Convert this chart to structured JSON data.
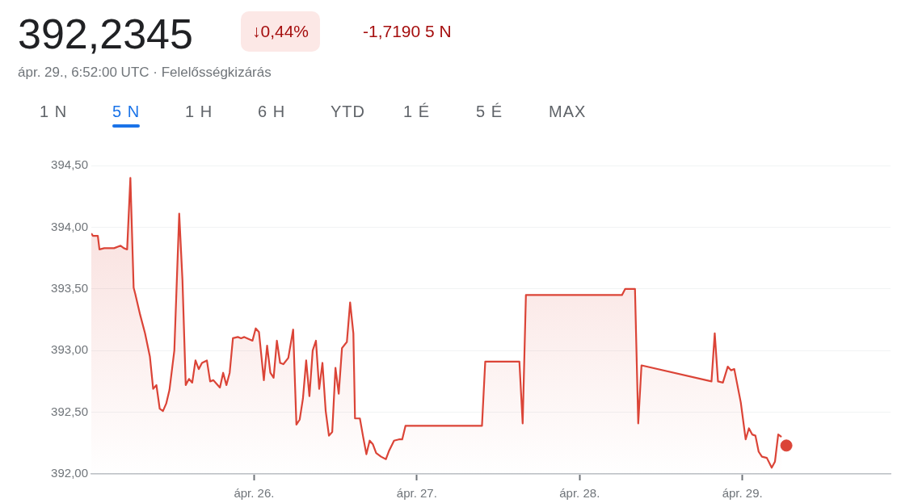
{
  "chart_data": {
    "type": "area",
    "title": "392,2345",
    "subtitle": "ápr. 29., 6:52:00 UTC · Felelősségkizárás",
    "annotations": [
      "↓0,44%",
      "-1,7190 5 N",
      "1 N",
      "5 N",
      "1 H",
      "6 H",
      "YTD",
      "1 É",
      "5 É",
      "MAX"
    ],
    "series": [
      {
        "color": "#db4437",
        "x": [
          25.0,
          25.01,
          25.04,
          25.05,
          25.08,
          25.14,
          25.18,
          25.2,
          25.22,
          25.24,
          25.26,
          25.27,
          25.3,
          25.33,
          25.36,
          25.38,
          25.4,
          25.42,
          25.44,
          25.46,
          25.48,
          25.51,
          25.54,
          25.56,
          25.58,
          25.6,
          25.62,
          25.64,
          25.66,
          25.68,
          25.71,
          25.73,
          25.75,
          25.77,
          25.79,
          25.81,
          25.83,
          25.85,
          25.87,
          25.9,
          25.92,
          25.94,
          25.99,
          26.01,
          26.03,
          26.06,
          26.08,
          26.1,
          26.12,
          26.14,
          26.16,
          26.18,
          26.21,
          26.24,
          26.26,
          26.28,
          26.3,
          26.32,
          26.34,
          26.36,
          26.38,
          26.4,
          26.42,
          26.44,
          26.46,
          26.48,
          26.5,
          26.52,
          26.54,
          26.57,
          26.59,
          26.61,
          26.62,
          26.65,
          26.67,
          26.69,
          26.71,
          26.73,
          26.75,
          26.78,
          26.81,
          26.83,
          26.86,
          26.89,
          26.91,
          26.93,
          27.4,
          27.42,
          27.63,
          27.65,
          27.67,
          28.26,
          28.28,
          28.34,
          28.36,
          28.38,
          28.81,
          28.83,
          28.85,
          28.88,
          28.91,
          28.93,
          28.95,
          28.99,
          29.02,
          29.04,
          29.06,
          29.08,
          29.1,
          29.12,
          29.15,
          29.18,
          29.2,
          29.22,
          29.24
        ],
        "values": [
          393.95,
          393.93,
          393.93,
          393.82,
          393.83,
          393.83,
          393.85,
          393.83,
          393.82,
          394.4,
          393.51,
          393.46,
          393.29,
          393.14,
          392.95,
          392.69,
          392.72,
          392.53,
          392.51,
          392.57,
          392.68,
          393.0,
          394.11,
          393.57,
          392.72,
          392.77,
          392.74,
          392.92,
          392.85,
          392.9,
          392.92,
          392.75,
          392.76,
          392.73,
          392.7,
          392.82,
          392.72,
          392.82,
          393.1,
          393.11,
          393.1,
          393.11,
          393.08,
          393.18,
          393.15,
          392.76,
          393.04,
          392.82,
          392.78,
          393.08,
          392.9,
          392.89,
          392.94,
          393.17,
          392.4,
          392.44,
          392.61,
          392.92,
          392.63,
          393.0,
          393.08,
          392.69,
          392.9,
          392.51,
          392.31,
          392.34,
          392.86,
          392.65,
          393.02,
          393.07,
          393.39,
          393.14,
          392.45,
          392.45,
          392.3,
          392.16,
          392.27,
          392.24,
          392.17,
          392.14,
          392.12,
          392.19,
          392.27,
          392.28,
          392.28,
          392.39,
          392.39,
          392.91,
          392.91,
          392.41,
          393.45,
          393.45,
          393.5,
          393.5,
          392.41,
          392.88,
          392.75,
          393.14,
          392.75,
          392.74,
          392.87,
          392.84,
          392.85,
          392.58,
          392.28,
          392.37,
          392.32,
          392.31,
          392.18,
          392.14,
          392.13,
          392.05,
          392.1,
          392.32,
          392.3
        ]
      },
      {
        "type": "scatter",
        "color": "#db4437",
        "x": [
          29.27
        ],
        "values": [
          392.23
        ]
      }
    ],
    "xlim": [
      25.0,
      29.91
    ],
    "xticks": [
      {
        "value": 26,
        "label": "ápr. 26."
      },
      {
        "value": 27,
        "label": "ápr. 27."
      },
      {
        "value": 28,
        "label": "ápr. 28."
      },
      {
        "value": 29,
        "label": "ápr. 29."
      }
    ],
    "ylim": [
      392.0,
      394.5
    ],
    "yticks": [
      {
        "value": 392.0,
        "label": "392,00"
      },
      {
        "value": 392.5,
        "label": "392,50"
      },
      {
        "value": 393.0,
        "label": "393,00"
      },
      {
        "value": 393.5,
        "label": "393,50"
      },
      {
        "value": 394.0,
        "label": "394,00"
      },
      {
        "value": 394.5,
        "label": "394,50"
      }
    ],
    "grid": "y",
    "legend": false
  }
}
